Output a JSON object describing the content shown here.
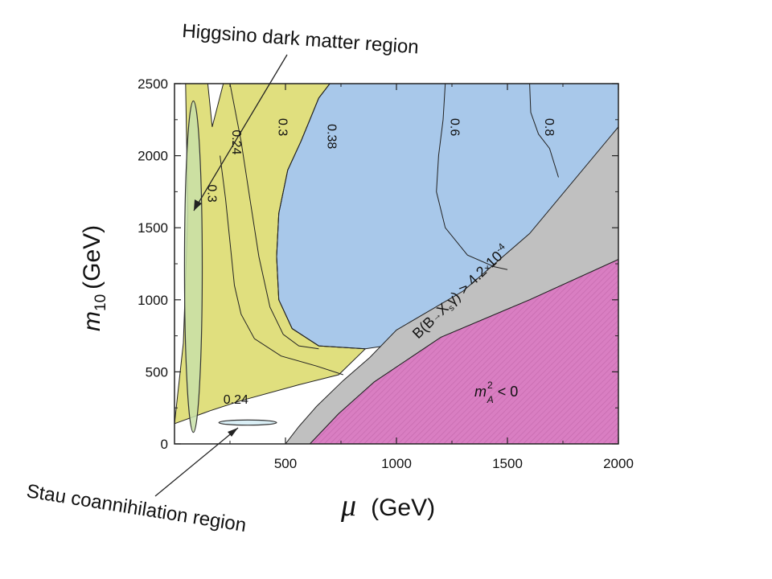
{
  "chart_data": {
    "type": "area",
    "title": "",
    "xlabel": "μ (GeV)",
    "xlabel_symbol": "μ",
    "xlabel_unit": "(GeV)",
    "ylabel_main": "m",
    "ylabel_sub": "10",
    "ylabel_unit": "(GeV)",
    "xlim": [
      0,
      2000
    ],
    "ylim": [
      0,
      2500
    ],
    "xticks": [
      "500",
      "1000",
      "1500",
      "2000"
    ],
    "yticks": [
      "0",
      "500",
      "1000",
      "1500",
      "2000",
      "2500"
    ],
    "grid": false,
    "regions": [
      {
        "name": "yellow",
        "color": "#e0df7e",
        "boundary": [
          [
            0,
            140
          ],
          [
            40,
            700
          ],
          [
            60,
            1600
          ],
          [
            50,
            2500
          ],
          [
            700,
            2500
          ],
          [
            650,
            2400
          ],
          [
            570,
            2100
          ],
          [
            510,
            1900
          ],
          [
            470,
            1600
          ],
          [
            460,
            1300
          ],
          [
            470,
            1000
          ],
          [
            530,
            800
          ],
          [
            650,
            680
          ],
          [
            860,
            660
          ],
          [
            740,
            480
          ],
          [
            560,
            410
          ],
          [
            300,
            300
          ],
          [
            160,
            230
          ],
          [
            0,
            140
          ]
        ]
      },
      {
        "name": "blue",
        "color": "#a8c8ea",
        "boundary": [
          [
            700,
            2500
          ],
          [
            2000,
            2500
          ],
          [
            2000,
            2200
          ],
          [
            1300,
            760
          ],
          [
            860,
            660
          ],
          [
            650,
            680
          ],
          [
            530,
            800
          ],
          [
            470,
            1000
          ],
          [
            460,
            1300
          ],
          [
            470,
            1600
          ],
          [
            510,
            1900
          ],
          [
            570,
            2100
          ],
          [
            650,
            2400
          ]
        ]
      },
      {
        "name": "gray",
        "color": "#c0c0c0",
        "boundary": [
          [
            2000,
            2200
          ],
          [
            2000,
            1280
          ],
          [
            1600,
            1000
          ],
          [
            1200,
            740
          ],
          [
            900,
            430
          ],
          [
            740,
            210
          ],
          [
            610,
            0
          ],
          [
            500,
            0
          ],
          [
            560,
            120
          ],
          [
            640,
            260
          ],
          [
            760,
            440
          ],
          [
            880,
            600
          ],
          [
            1000,
            790
          ],
          [
            1300,
            1060
          ],
          [
            1600,
            1460
          ],
          [
            2000,
            2200
          ]
        ]
      },
      {
        "name": "magenta",
        "color": "#d97ec2",
        "boundary": [
          [
            610,
            0
          ],
          [
            2000,
            0
          ],
          [
            2000,
            1280
          ],
          [
            1600,
            1000
          ],
          [
            1200,
            740
          ],
          [
            900,
            430
          ],
          [
            740,
            210
          ]
        ]
      }
    ],
    "white_notch": [
      [
        150,
        2500
      ],
      [
        220,
        2500
      ],
      [
        170,
        2200
      ]
    ],
    "contours": [
      {
        "label": "0.24",
        "points": [
          [
            205,
            2000
          ],
          [
            230,
            1700
          ],
          [
            250,
            1400
          ],
          [
            270,
            1100
          ],
          [
            300,
            900
          ],
          [
            360,
            730
          ],
          [
            480,
            610
          ],
          [
            640,
            540
          ],
          [
            760,
            480
          ]
        ]
      },
      {
        "label": "0.3",
        "points": [
          [
            250,
            2500
          ],
          [
            300,
            2100
          ],
          [
            340,
            1700
          ],
          [
            380,
            1300
          ],
          [
            430,
            950
          ],
          [
            490,
            760
          ],
          [
            560,
            680
          ],
          [
            650,
            660
          ]
        ]
      },
      {
        "label": "0.38",
        "points": [
          [
            700,
            2500
          ],
          [
            650,
            2400
          ],
          [
            570,
            2100
          ],
          [
            510,
            1900
          ],
          [
            470,
            1600
          ],
          [
            460,
            1300
          ],
          [
            470,
            1000
          ],
          [
            530,
            800
          ],
          [
            650,
            680
          ],
          [
            860,
            660
          ]
        ]
      },
      {
        "label": "0.6",
        "points": [
          [
            1220,
            2500
          ],
          [
            1210,
            2250
          ],
          [
            1190,
            2000
          ],
          [
            1180,
            1750
          ],
          [
            1220,
            1500
          ],
          [
            1320,
            1310
          ],
          [
            1440,
            1230
          ],
          [
            1500,
            1210
          ]
        ]
      },
      {
        "label": "0.8",
        "points": [
          [
            1600,
            2500
          ],
          [
            1605,
            2300
          ],
          [
            1640,
            2150
          ],
          [
            1690,
            2050
          ],
          [
            1730,
            1850
          ]
        ]
      }
    ],
    "contour_labels": [
      {
        "text": "0.24",
        "x": 260,
        "y": 2180,
        "rotate": 90
      },
      {
        "text": "0.3",
        "x": 470,
        "y": 2260,
        "rotate": 90
      },
      {
        "text": "0.38",
        "x": 690,
        "y": 2220,
        "rotate": 90
      },
      {
        "text": "0.6",
        "x": 1245,
        "y": 2260,
        "rotate": 90
      },
      {
        "text": "0.8",
        "x": 1670,
        "y": 2260,
        "rotate": 90
      },
      {
        "text": "0.3",
        "x": 150,
        "y": 1800,
        "rotate": 90,
        "color": "#7a7a7a"
      },
      {
        "text": "0.24",
        "x": 220,
        "y": 280,
        "rotate": 0
      }
    ],
    "ellipses": [
      {
        "name": "higgsino-region",
        "cx": 85,
        "cy": 1230,
        "rx": 40,
        "ry": 1150,
        "fill": "#c8e0a8",
        "stroke": "#333333"
      },
      {
        "name": "stau-region",
        "cx": 330,
        "cy": 148,
        "rx": 130,
        "ry": 18,
        "fill": "#d4ecf4",
        "stroke": "#333333"
      }
    ],
    "annotations": [
      {
        "text": "Higgsino dark matter region"
      },
      {
        "text": "Stau coannihilation region"
      }
    ],
    "bsg_label": {
      "main": "B(B",
      "arrow": "→",
      "xs": "X",
      "xs_sub": "s",
      "gamma": "γ",
      "rest": ") > 4.2",
      "times": "×",
      "power": "10",
      "exp": "-4"
    },
    "ma_label": {
      "m": "m",
      "sup": "2",
      "sub": "A",
      "rest": " < 0"
    }
  }
}
